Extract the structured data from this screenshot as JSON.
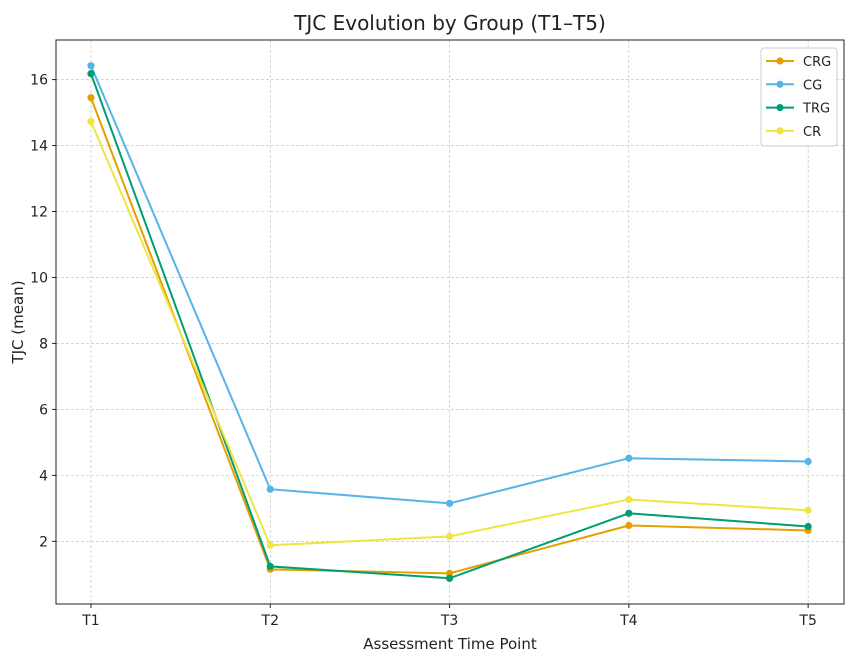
{
  "chart_data": {
    "type": "line",
    "title": "TJC Evolution by Group (T1–T5)",
    "xlabel": "Assessment Time Point",
    "ylabel": "TJC (mean)",
    "categories": [
      "T1",
      "T2",
      "T3",
      "T4",
      "T5"
    ],
    "yticks": [
      2,
      4,
      6,
      8,
      10,
      12,
      14,
      16
    ],
    "ylim": [
      0.1,
      17.2
    ],
    "grid": true,
    "legend_position": "top-right",
    "series": [
      {
        "name": "CRG",
        "color": "#E69F00",
        "values": [
          15.45,
          1.15,
          1.03,
          2.48,
          2.33
        ]
      },
      {
        "name": "CG",
        "color": "#56B4E9",
        "values": [
          16.42,
          3.58,
          3.15,
          4.52,
          4.42
        ]
      },
      {
        "name": "TRG",
        "color": "#009E73",
        "values": [
          16.18,
          1.24,
          0.88,
          2.85,
          2.45
        ]
      },
      {
        "name": "CR",
        "color": "#F0E442",
        "values": [
          14.73,
          1.88,
          2.15,
          3.27,
          2.94
        ]
      }
    ]
  }
}
